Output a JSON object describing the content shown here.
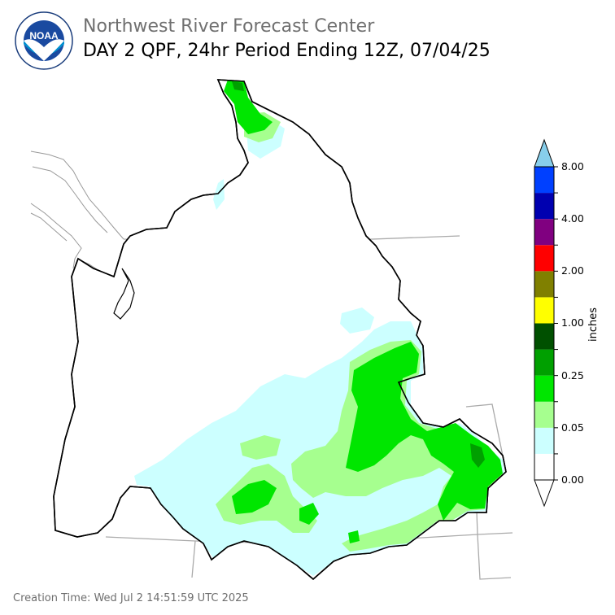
{
  "header": {
    "org_name": "Northwest River Forecast Center",
    "product_title": "DAY 2 QPF, 24hr Period Ending 12Z, 07/04/25"
  },
  "logo": {
    "icon": "noaa-logo",
    "text": "NOAA",
    "ring_text": "NATIONAL OCEANIC AND ATMOSPHERIC ADMINISTRATION · U.S. DEPARTMENT OF COMMERCE"
  },
  "colorbar": {
    "unit": "inches",
    "tick_labels": [
      "8.00",
      "4.00",
      "2.00",
      "1.00",
      "0.25",
      "0.05",
      "0.00"
    ],
    "colors": [
      "#ffffff",
      "#ccffff",
      "#a6ff8f",
      "#00e600",
      "#00a000",
      "#005000",
      "#ffff00",
      "#808000",
      "#ff0000",
      "#800080",
      "#0000b0",
      "#0040ff",
      "#87ceeb"
    ]
  },
  "footer": {
    "creation_time": "Creation Time: Wed Jul 2 14:51:59 UTC 2025"
  }
}
